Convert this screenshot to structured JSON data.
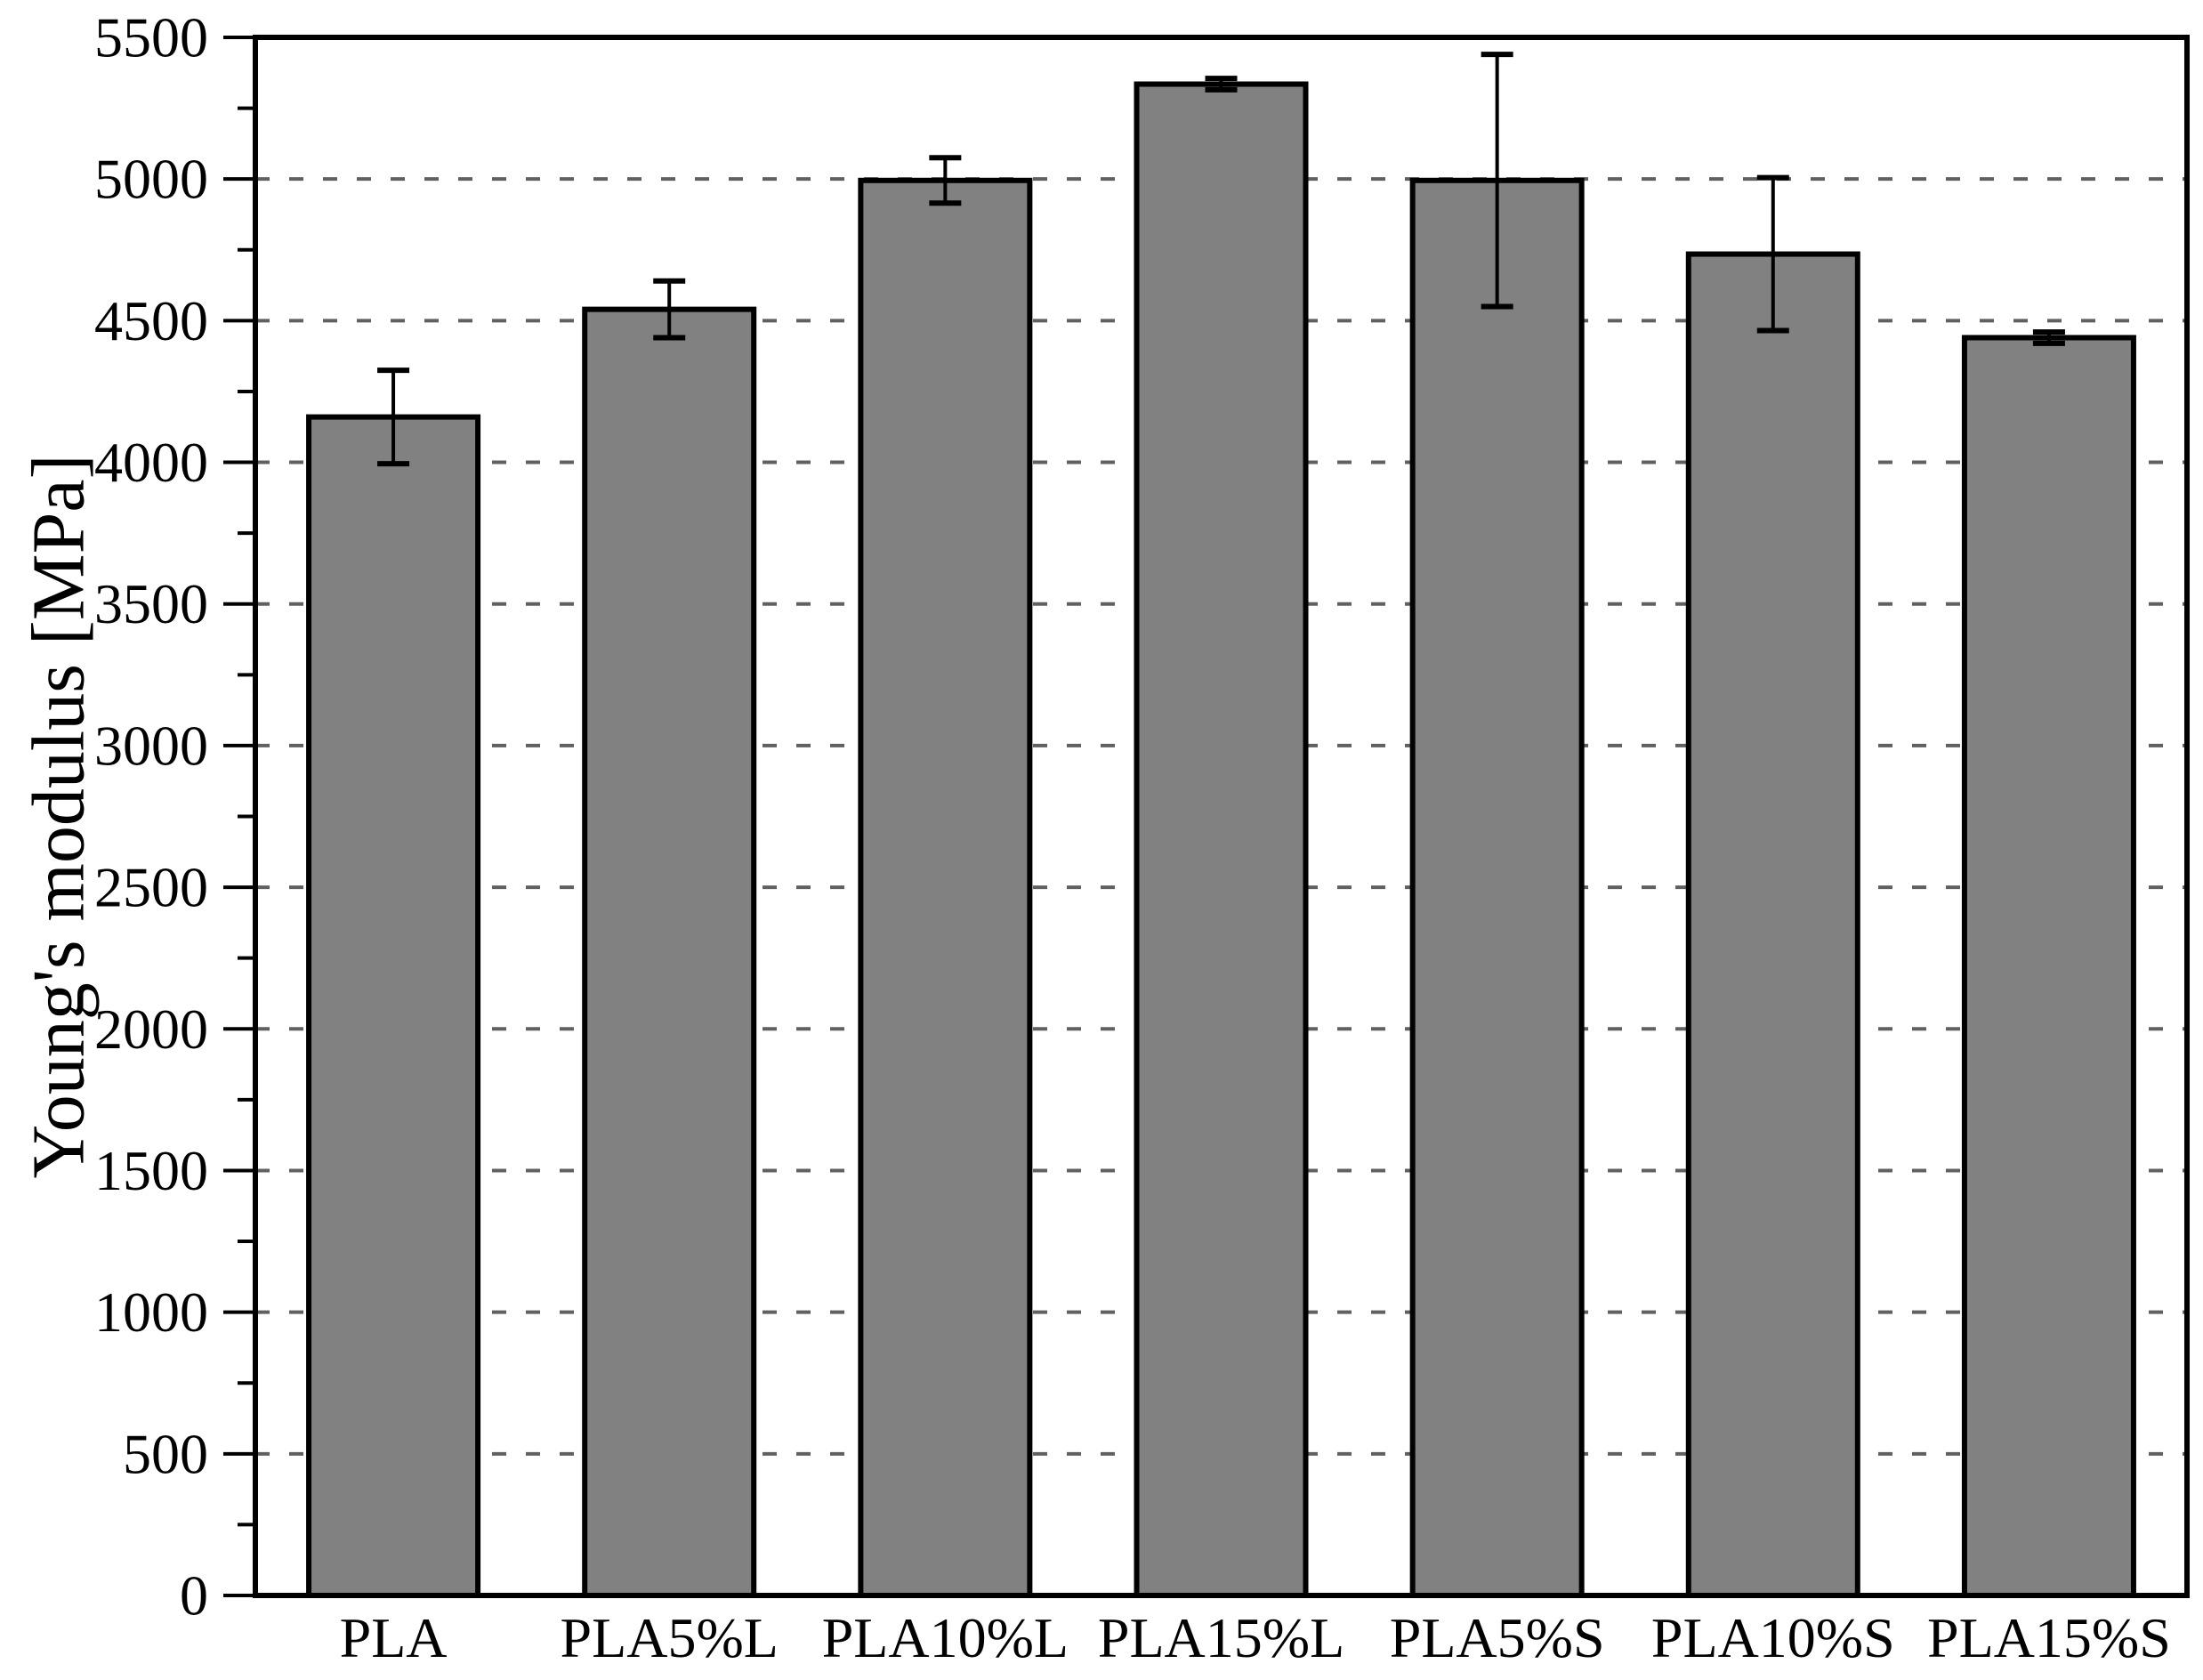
{
  "figure": {
    "background": "#ffffff"
  },
  "chart_data": {
    "type": "bar",
    "title": "",
    "xlabel": "",
    "ylabel": "Young's modulus [MPa]",
    "categories": [
      "PLA",
      "PLA5%L",
      "PLA10%L",
      "PLA15%L",
      "PLA5%S",
      "PLA10%S",
      "PLA15%S"
    ],
    "values": [
      4160,
      4540,
      4995,
      5335,
      4995,
      4735,
      4440
    ],
    "error_bars": [
      165,
      100,
      80,
      20,
      445,
      270,
      20
    ],
    "ylim": [
      0,
      5500
    ],
    "ytick_step": 500,
    "ytick_labels": [
      "0",
      "500",
      "1000",
      "1500",
      "2000",
      "2500",
      "3000",
      "3500",
      "4000",
      "4500",
      "5000",
      "5500"
    ],
    "minor_tick_step": 250,
    "grid": "horizontal dashed lines at major ticks",
    "legend": "none",
    "colors": {
      "bar_fill": "#818181",
      "bar_border": "#000000",
      "error_bar": "#000000",
      "grid_line": "#606060",
      "axis": "#000000",
      "background": "#ffffff"
    }
  }
}
